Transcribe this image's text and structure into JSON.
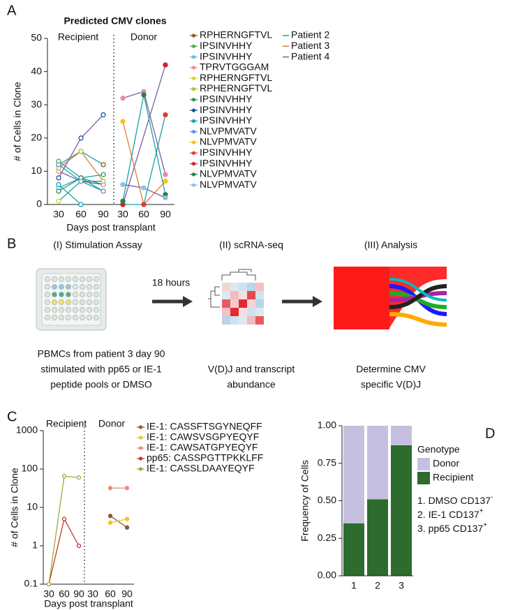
{
  "panel_labels": [
    "A",
    "B",
    "C",
    "D"
  ],
  "chart_data": [
    {
      "type": "line",
      "title": "Predicted CMV clones",
      "ylabel": "# of Cells in Clone",
      "xlabel": "Days post transplant",
      "groups": [
        {
          "name": "Recipient",
          "categories": [
            "30",
            "60",
            "90"
          ]
        },
        {
          "name": "Donor",
          "categories": [
            "30",
            "60",
            "90"
          ]
        }
      ],
      "ylim": [
        0,
        50
      ],
      "yticks": [
        0,
        10,
        20,
        30,
        40,
        50
      ],
      "series": [
        {
          "name": "RPHERNGFTVL",
          "color": "#8b5a2b",
          "line_color": "#1ba39c",
          "values": [
            12,
            16,
            12,
            null,
            null,
            null
          ]
        },
        {
          "name": "IPSINVHHY",
          "color": "#4caf50",
          "line_color": "#1ba39c",
          "values": [
            13,
            8,
            6,
            null,
            null,
            null
          ]
        },
        {
          "name": "IPSINVHHY",
          "color": "#5bc0de",
          "line_color": "#1ba39c",
          "values": [
            5,
            8,
            4,
            null,
            null,
            null
          ]
        },
        {
          "name": "TPRVTGGGAM",
          "color": "#e88aa8",
          "line_color": "#7b5ea7",
          "values": [
            10,
            7,
            6,
            32,
            34,
            9
          ]
        },
        {
          "name": "RPHERNGFTVL",
          "color": "#d4d23a",
          "line_color": "#1ba39c",
          "values": [
            1,
            7,
            7,
            null,
            null,
            null
          ]
        },
        {
          "name": "RPHERNGFTVL",
          "color": "#9acd32",
          "line_color": "#e07b39",
          "values": [
            11,
            16,
            7,
            null,
            null,
            null
          ]
        },
        {
          "name": "IPSINVHHY",
          "color": "#2e8b57",
          "line_color": "#1ba39c",
          "values": [
            4,
            8,
            9,
            null,
            null,
            null
          ]
        },
        {
          "name": "IPSINVHHY",
          "color": "#1f4e9c",
          "line_color": "#7b5ea7",
          "values": [
            8,
            20,
            27,
            null,
            null,
            null
          ]
        },
        {
          "name": "IPSINVHHY",
          "color": "#17a2b8",
          "line_color": "#1ba39c",
          "values": [
            6,
            0,
            null,
            null,
            null,
            null
          ]
        },
        {
          "name": "NLVPMVATV",
          "color": "#6a8fd0",
          "line_color": "#1ba39c",
          "values": [
            12,
            7,
            4,
            null,
            null,
            null
          ]
        },
        {
          "name": "NLVPMVATV",
          "color": "#f5c518",
          "line_color": "#e07b39",
          "values": [
            null,
            null,
            null,
            25,
            0,
            7
          ]
        },
        {
          "name": "IPSINVHHY",
          "color": "#e8392b",
          "line_color": "#1ba39c",
          "values": [
            null,
            null,
            null,
            0,
            0,
            27
          ]
        },
        {
          "name": "IPSINVHHY",
          "color": "#d62020",
          "line_color": "#7b5ea7",
          "values": [
            null,
            null,
            null,
            0,
            null,
            42
          ]
        },
        {
          "name": "NLVPMVATV",
          "color": "#2a7d4f",
          "line_color": "#1ba39c",
          "values": [
            null,
            null,
            null,
            1,
            33,
            3
          ]
        },
        {
          "name": "NLVPMVATV",
          "color": "#8fc1e3",
          "line_color": "#7b5ea7",
          "values": [
            null,
            null,
            null,
            6,
            5,
            2
          ]
        }
      ],
      "line_legend": [
        {
          "name": "Patient 2",
          "color": "#1ba39c"
        },
        {
          "name": "Patient 3",
          "color": "#e07b39"
        },
        {
          "name": "Patient 4",
          "color": "#7b5ea7"
        }
      ]
    },
    {
      "type": "line",
      "log": true,
      "ylabel": "# of Cells in Clone",
      "xlabel": "Days post transplant",
      "groups": [
        {
          "name": "Recipient",
          "categories": [
            "30",
            "60",
            "90"
          ]
        },
        {
          "name": "Donor",
          "categories": [
            "30",
            "60",
            "90"
          ]
        }
      ],
      "ylim": [
        0.1,
        1000
      ],
      "yticks": [
        0.1,
        1,
        10,
        100,
        1000
      ],
      "series": [
        {
          "name": "IE-1: CASSFTSGYNEQFF",
          "color": "#8b5a2b",
          "values": [
            null,
            null,
            null,
            null,
            6,
            3
          ]
        },
        {
          "name": "IE-1: CAWSVSGPYEQYF",
          "color": "#f5c518",
          "values": [
            null,
            null,
            null,
            null,
            4,
            5
          ]
        },
        {
          "name": "IE-1: CAWSATGPYEQYF",
          "color": "#f08a7a",
          "values": [
            null,
            null,
            null,
            null,
            32,
            32
          ]
        },
        {
          "name": "pp65: CASSPGTTPKKLFF",
          "color": "#c0392b",
          "values": [
            0.1,
            5,
            1,
            null,
            null,
            null
          ]
        },
        {
          "name": "IE-1: CASSLDAAYEQYF",
          "color": "#9aab3a",
          "values": [
            0.1,
            65,
            60,
            null,
            null,
            null
          ]
        }
      ]
    },
    {
      "type": "stacked_bar",
      "ylabel": "Frequency of Cells",
      "categories": [
        "1",
        "2",
        "3"
      ],
      "ylim": [
        0,
        1
      ],
      "yticks": [
        {
          "value": 0,
          "label": "0.00"
        },
        {
          "value": 0.25,
          "label": "0.25"
        },
        {
          "value": 0.5,
          "label": "0.50"
        },
        {
          "value": 0.75,
          "label": "0.75"
        },
        {
          "value": 1,
          "label": "1.00"
        }
      ],
      "legend_title": "Genotype",
      "series": [
        {
          "name": "Recipient",
          "color": "#2e6b2e",
          "values": [
            0.35,
            0.51,
            0.87
          ]
        },
        {
          "name": "Donor",
          "color": "#c6c0e0",
          "values": [
            0.65,
            0.49,
            0.13
          ]
        }
      ],
      "notes": [
        {
          "text": "1. DMSO CD137",
          "sup": "-"
        },
        {
          "text": "2. IE-1 CD137",
          "sup": "+"
        },
        {
          "text": "3. pp65 CD137",
          "sup": "+"
        }
      ]
    }
  ],
  "diagram": {
    "arrow_label": "18 hours",
    "stages": [
      {
        "title": "(I) Stimulation Assay",
        "caption": [
          "PBMCs from patient 3 day 90",
          "stimulated with pp65 or IE-1",
          "peptide pools or DMSO"
        ]
      },
      {
        "title": "(II) scRNA-seq",
        "caption": [
          "V(D)J and transcript",
          "abundance"
        ]
      },
      {
        "title": "(III) Analysis",
        "caption": [
          "Determine CMV",
          "specific V(D)J"
        ]
      }
    ]
  }
}
